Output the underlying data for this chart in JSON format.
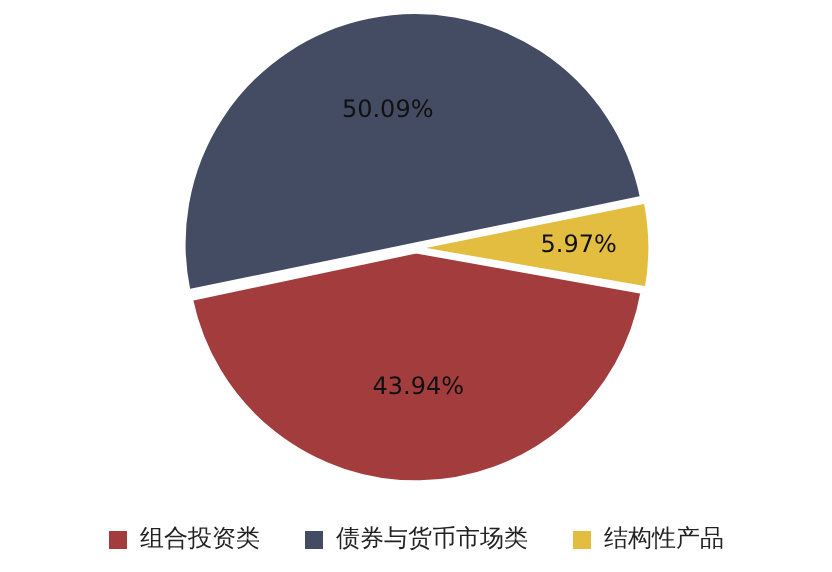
{
  "chart_data": {
    "type": "pie",
    "categories": [
      "组合投资类",
      "债券与货币市场类",
      "结构性产品"
    ],
    "values": [
      43.94,
      50.09,
      5.97
    ],
    "colors": [
      "#a33c3c",
      "#434c63",
      "#e2bd3f"
    ],
    "value_labels": [
      "43.94%",
      "50.09%",
      "5.97%"
    ],
    "legend": "bottom"
  }
}
